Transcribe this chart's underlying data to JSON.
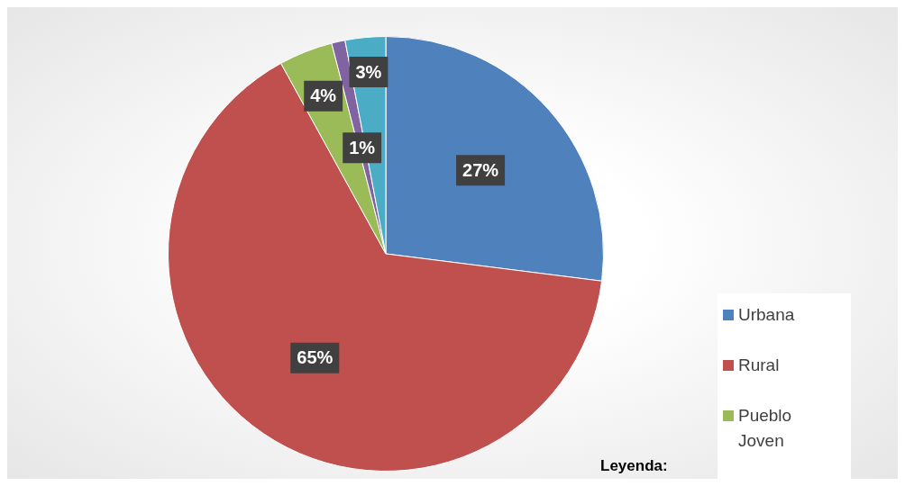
{
  "chart_data": {
    "type": "pie",
    "categories": [
      "Urbana",
      "Rural",
      "Pueblo Joven",
      null,
      null
    ],
    "values": [
      27,
      65,
      4,
      1,
      3
    ],
    "colors": [
      "#4f81bd",
      "#c0504d",
      "#9bbb59",
      "#8064a2",
      "#4bacc6"
    ],
    "value_labels": [
      "27%",
      "65%",
      "4%",
      "1%",
      "3%"
    ],
    "legend": "bottom right",
    "legend_title": "Leyenda:"
  }
}
